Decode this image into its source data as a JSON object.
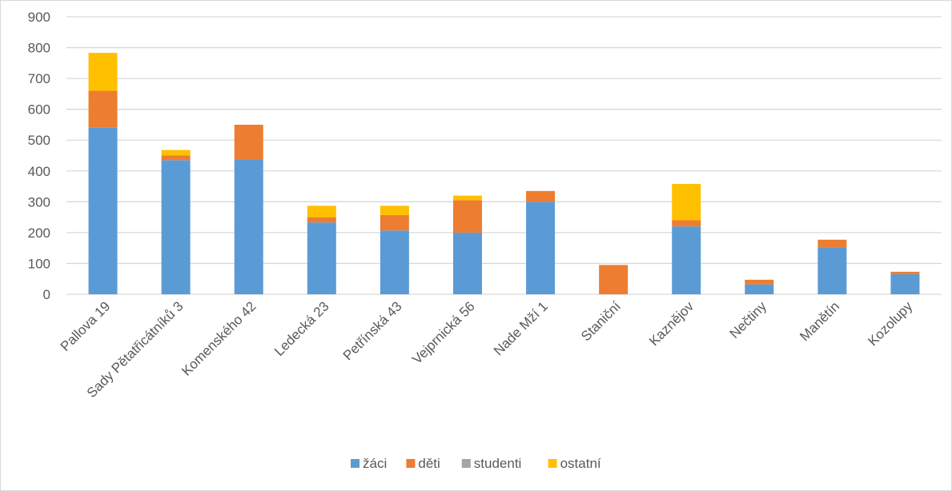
{
  "chart_data": {
    "type": "bar",
    "stacked": true,
    "title": "",
    "xlabel": "",
    "ylabel": "",
    "ylim": [
      0,
      900
    ],
    "yticks": [
      0,
      100,
      200,
      300,
      400,
      500,
      600,
      700,
      800,
      900
    ],
    "grid": true,
    "legend_position": "bottom",
    "categories": [
      "Pallova 19",
      "Sady Pětatřicátníků 3",
      "Komenského 42",
      "Ledecká 23",
      "Petřínská 43",
      "Vejprnická 56",
      "Nade Mží 1",
      "Staniční",
      "Kaznějov",
      "Nečtiny",
      "Manětín",
      "Kozolupy"
    ],
    "series": [
      {
        "name": "žáci",
        "color": "#5B9BD5",
        "values": [
          540,
          435,
          438,
          233,
          207,
          200,
          300,
          0,
          220,
          32,
          152,
          65
        ]
      },
      {
        "name": "děti",
        "color": "#ED7D31",
        "values": [
          120,
          15,
          112,
          17,
          50,
          105,
          35,
          95,
          20,
          15,
          25,
          8
        ]
      },
      {
        "name": "studenti",
        "color": "#A5A5A5",
        "values": [
          0,
          0,
          0,
          0,
          0,
          0,
          0,
          0,
          0,
          0,
          0,
          0
        ]
      },
      {
        "name": "ostatní",
        "color": "#FFC000",
        "values": [
          123,
          18,
          0,
          37,
          30,
          15,
          0,
          0,
          118,
          0,
          0,
          0
        ]
      }
    ]
  }
}
